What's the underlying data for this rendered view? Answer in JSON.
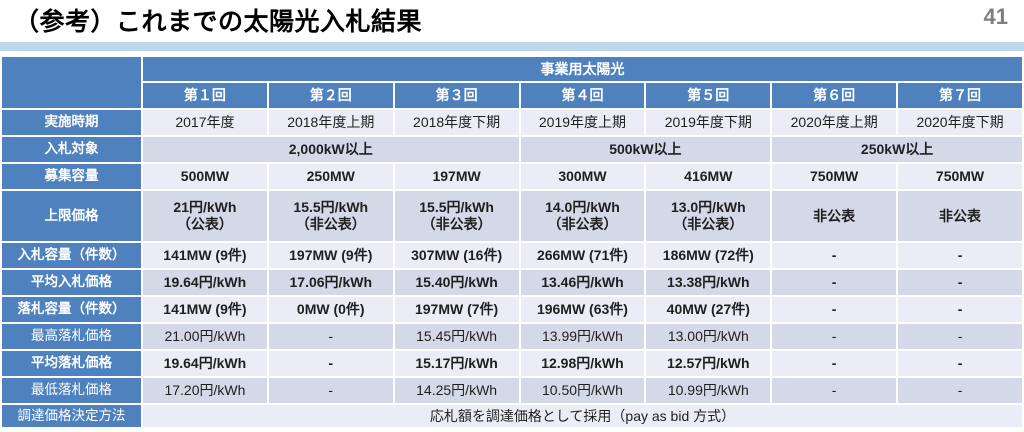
{
  "page": {
    "title": "（参考）これまでの太陽光入札結果",
    "page_number": "41"
  },
  "colors": {
    "header_blue": "#4e81bd",
    "row_light": "#eaedf5",
    "row_dark": "#d3d9e7",
    "accent_band_blue": "#bdd7ee",
    "page_number_gray": "#7f7f7f"
  },
  "table": {
    "group_header": "事業用太陽光",
    "round_headers": [
      "第１回",
      "第２回",
      "第３回",
      "第４回",
      "第５回",
      "第６回",
      "第７回"
    ],
    "rows": {
      "jisshi_jiki": {
        "label": "実施時期",
        "values": [
          "2017年度",
          "2018年度上期",
          "2018年度下期",
          "2019年度上期",
          "2019年度下期",
          "2020年度上期",
          "2020年度下期"
        ]
      },
      "nyusatsu_taisho": {
        "label": "入札対象",
        "values": [
          "2,000kW以上",
          "500kW以上",
          "250kW以上"
        ]
      },
      "boshu_yoryo": {
        "label": "募集容量",
        "values": [
          "500MW",
          "250MW",
          "197MW",
          "300MW",
          "416MW",
          "750MW",
          "750MW"
        ]
      },
      "jogen_kakaku": {
        "label": "上限価格",
        "values": [
          "21円/kWh\n（公表）",
          "15.5円/kWh\n（非公表）",
          "15.5円/kWh\n（非公表）",
          "14.0円/kWh\n（非公表）",
          "13.0円/kWh\n（非公表）",
          "非公表",
          "非公表"
        ]
      },
      "nyusatsu_yoryo": {
        "label": "入札容量（件数）",
        "values": [
          "141MW (9件)",
          "197MW (9件)",
          "307MW (16件)",
          "266MW (71件)",
          "186MW (72件)",
          "-",
          "-"
        ]
      },
      "heikin_nyusatsu_kakaku": {
        "label": "平均入札価格",
        "values": [
          "19.64円/kWh",
          "17.06円/kWh",
          "15.40円/kWh",
          "13.46円/kWh",
          "13.38円/kWh",
          "-",
          "-"
        ]
      },
      "rakusatsu_yoryo": {
        "label": "落札容量（件数）",
        "values": [
          "141MW (9件)",
          "0MW (0件)",
          "197MW (7件)",
          "196MW (63件)",
          "40MW (27件)",
          "-",
          "-"
        ]
      },
      "saiko_rakusatsu_kakaku": {
        "label": "最高落札価格",
        "values": [
          "21.00円/kWh",
          "-",
          "15.45円/kWh",
          "13.99円/kWh",
          "13.00円/kWh",
          "-",
          "-"
        ]
      },
      "heikin_rakusatsu_kakaku": {
        "label": "平均落札価格",
        "values": [
          "19.64円/kWh",
          "-",
          "15.17円/kWh",
          "12.98円/kWh",
          "12.57円/kWh",
          "-",
          "-"
        ]
      },
      "saitei_rakusatsu_kakaku": {
        "label": "最低落札価格",
        "values": [
          "17.20円/kWh",
          "-",
          "14.25円/kWh",
          "10.50円/kWh",
          "10.99円/kWh",
          "-",
          "-"
        ]
      },
      "chotatsu_hoho": {
        "label": "調達価格決定方法",
        "value": "応札額を調達価格として採用（pay as bid 方式）"
      }
    }
  }
}
